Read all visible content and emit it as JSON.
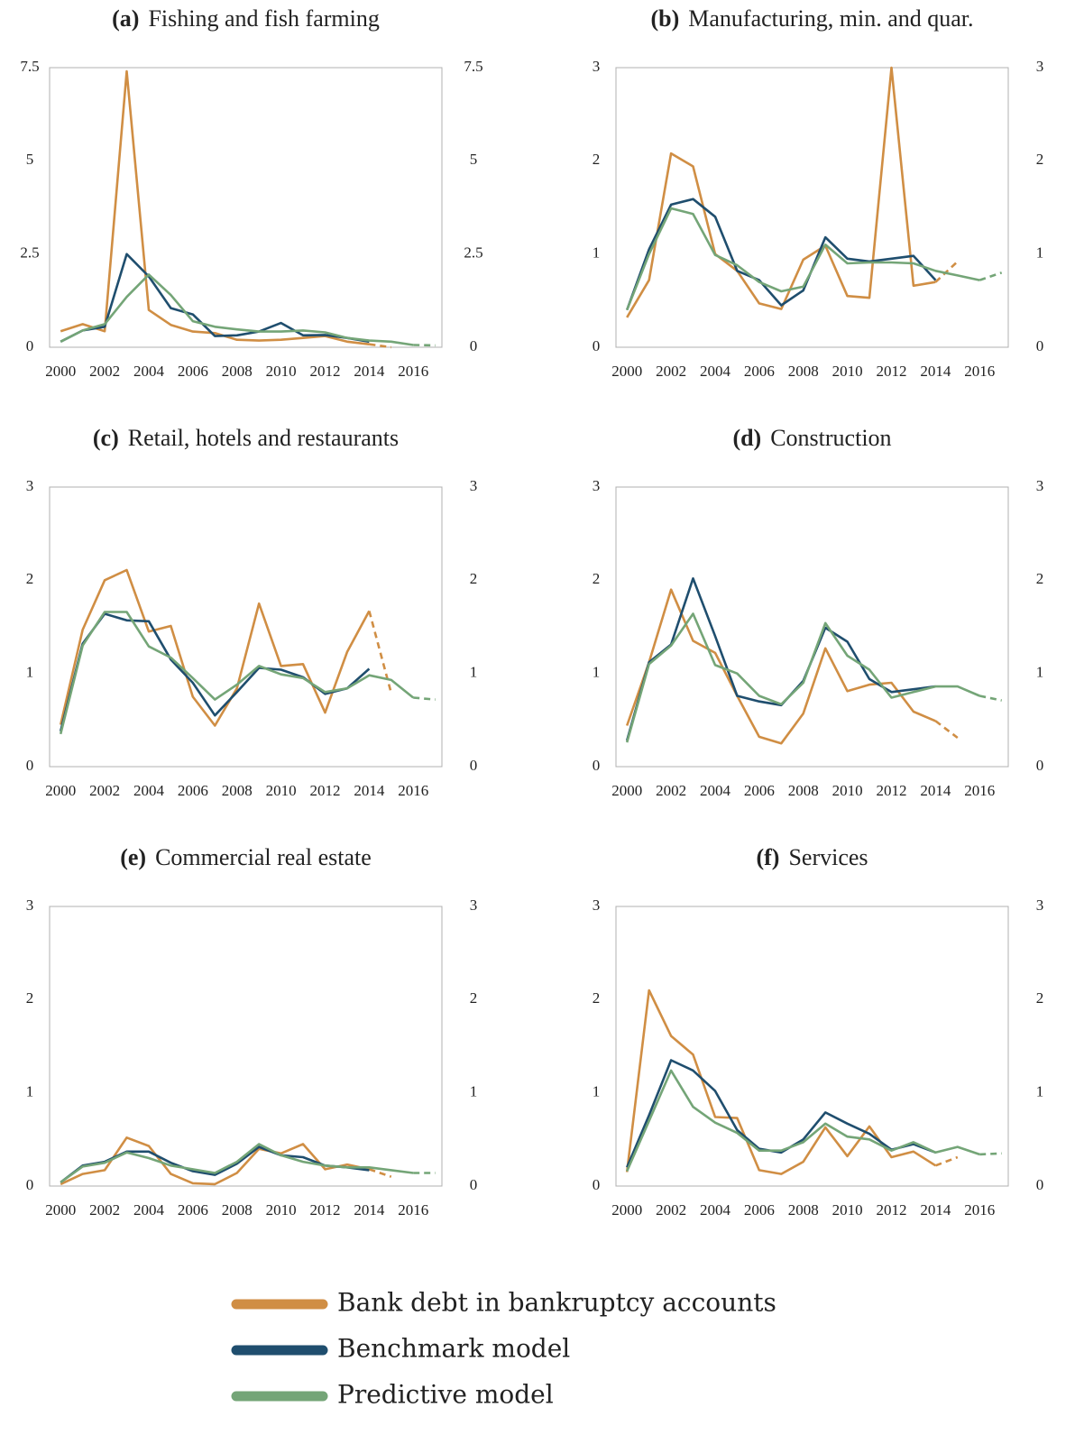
{
  "chart_data": [
    {
      "type": "line",
      "panel_label": "(a)",
      "title": "Fishing and fish farming",
      "x": [
        2000,
        2001,
        2002,
        2003,
        2004,
        2005,
        2006,
        2007,
        2008,
        2009,
        2010,
        2011,
        2012,
        2013,
        2014,
        2015,
        2016,
        2017
      ],
      "xlim": [
        1999.5,
        2017.3
      ],
      "xticks": [
        2000,
        2002,
        2004,
        2006,
        2008,
        2010,
        2012,
        2014,
        2016
      ],
      "ylim": [
        0,
        7.5
      ],
      "yticks": [
        0,
        2.5,
        5,
        7.5
      ],
      "y2lim": [
        0,
        7.5
      ],
      "y2ticks": [
        0,
        2.5,
        5,
        7.5
      ],
      "series": [
        {
          "color": "#D08E44",
          "dashed_last_segment": true,
          "values": [
            0.43,
            0.62,
            0.43,
            7.4,
            1.0,
            0.6,
            0.42,
            0.38,
            0.2,
            0.18,
            0.2,
            0.25,
            0.3,
            0.15,
            0.08,
            0.0,
            null,
            null
          ]
        },
        {
          "color": "#1F4E6E",
          "dashed_last_segment": false,
          "values": [
            0.15,
            0.45,
            0.55,
            2.5,
            1.9,
            1.05,
            0.88,
            0.3,
            0.32,
            0.42,
            0.65,
            0.32,
            0.33,
            0.25,
            0.15,
            null,
            null,
            null
          ]
        },
        {
          "color": "#74A577",
          "dashed_last_segment": true,
          "values": [
            0.15,
            0.45,
            0.62,
            1.35,
            1.95,
            1.4,
            0.7,
            0.55,
            0.48,
            0.42,
            0.42,
            0.45,
            0.4,
            0.25,
            0.18,
            0.15,
            0.06,
            0.05
          ]
        }
      ]
    },
    {
      "type": "line",
      "panel_label": "(b)",
      "title": "Manufacturing, min. and quar.",
      "x": [
        2000,
        2001,
        2002,
        2003,
        2004,
        2005,
        2006,
        2007,
        2008,
        2009,
        2010,
        2011,
        2012,
        2013,
        2014,
        2015,
        2016,
        2017
      ],
      "xlim": [
        1999.5,
        2017.3
      ],
      "xticks": [
        2000,
        2002,
        2004,
        2006,
        2008,
        2010,
        2012,
        2014,
        2016
      ],
      "ylim": [
        0,
        3
      ],
      "yticks": [
        0,
        1,
        2,
        3
      ],
      "y2lim": [
        0,
        3
      ],
      "y2ticks": [
        0,
        1,
        2,
        3
      ],
      "series": [
        {
          "color": "#D08E44",
          "dashed_last_segment": true,
          "values": [
            0.32,
            0.72,
            2.08,
            1.94,
            1.0,
            0.82,
            0.47,
            0.41,
            0.94,
            1.09,
            0.55,
            0.53,
            3.0,
            0.66,
            0.7,
            0.92,
            null,
            null
          ]
        },
        {
          "color": "#1F4E6E",
          "dashed_last_segment": false,
          "values": [
            0.4,
            1.05,
            1.53,
            1.59,
            1.4,
            0.82,
            0.72,
            0.45,
            0.61,
            1.18,
            0.95,
            0.92,
            0.95,
            0.98,
            0.72,
            null,
            null,
            null
          ]
        },
        {
          "color": "#74A577",
          "dashed_last_segment": true,
          "values": [
            0.4,
            1.0,
            1.49,
            1.43,
            0.99,
            0.88,
            0.7,
            0.6,
            0.65,
            1.1,
            0.9,
            0.91,
            0.91,
            0.9,
            0.82,
            0.77,
            0.72,
            0.8
          ]
        }
      ]
    },
    {
      "type": "line",
      "panel_label": "(c)",
      "title": "Retail, hotels and restaurants",
      "x": [
        2000,
        2001,
        2002,
        2003,
        2004,
        2005,
        2006,
        2007,
        2008,
        2009,
        2010,
        2011,
        2012,
        2013,
        2014,
        2015,
        2016,
        2017
      ],
      "xlim": [
        1999.5,
        2017.3
      ],
      "xticks": [
        2000,
        2002,
        2004,
        2006,
        2008,
        2010,
        2012,
        2014,
        2016
      ],
      "ylim": [
        0,
        3
      ],
      "yticks": [
        0,
        1,
        2,
        3
      ],
      "y2lim": [
        0,
        3
      ],
      "y2ticks": [
        0,
        1,
        2,
        3
      ],
      "series": [
        {
          "color": "#D08E44",
          "dashed_last_segment": true,
          "values": [
            0.45,
            1.47,
            2.0,
            2.11,
            1.45,
            1.51,
            0.75,
            0.44,
            0.84,
            1.75,
            1.08,
            1.1,
            0.58,
            1.23,
            1.67,
            0.79,
            null,
            null
          ]
        },
        {
          "color": "#1F4E6E",
          "dashed_last_segment": false,
          "values": [
            0.38,
            1.32,
            1.64,
            1.57,
            1.56,
            1.15,
            0.9,
            0.55,
            0.8,
            1.06,
            1.04,
            0.96,
            0.78,
            0.84,
            1.05,
            null,
            null,
            null
          ]
        },
        {
          "color": "#74A577",
          "dashed_last_segment": true,
          "values": [
            0.35,
            1.3,
            1.66,
            1.66,
            1.29,
            1.17,
            0.95,
            0.72,
            0.88,
            1.08,
            0.99,
            0.95,
            0.8,
            0.84,
            0.98,
            0.93,
            0.74,
            0.72
          ]
        }
      ]
    },
    {
      "type": "line",
      "panel_label": "(d)",
      "title": "Construction",
      "x": [
        2000,
        2001,
        2002,
        2003,
        2004,
        2005,
        2006,
        2007,
        2008,
        2009,
        2010,
        2011,
        2012,
        2013,
        2014,
        2015,
        2016,
        2017
      ],
      "xlim": [
        1999.5,
        2017.3
      ],
      "xticks": [
        2000,
        2002,
        2004,
        2006,
        2008,
        2010,
        2012,
        2014,
        2016
      ],
      "ylim": [
        0,
        3
      ],
      "yticks": [
        0,
        1,
        2,
        3
      ],
      "y2lim": [
        0,
        3
      ],
      "y2ticks": [
        0,
        1,
        2,
        3
      ],
      "series": [
        {
          "color": "#D08E44",
          "dashed_last_segment": true,
          "values": [
            0.44,
            1.12,
            1.9,
            1.35,
            1.22,
            0.76,
            0.32,
            0.25,
            0.57,
            1.27,
            0.81,
            0.88,
            0.9,
            0.59,
            0.49,
            0.31,
            null,
            null
          ]
        },
        {
          "color": "#1F4E6E",
          "dashed_last_segment": false,
          "values": [
            0.28,
            1.12,
            1.31,
            2.02,
            1.4,
            0.76,
            0.7,
            0.66,
            0.92,
            1.49,
            1.34,
            0.94,
            0.8,
            0.83,
            0.86,
            null,
            null,
            null
          ]
        },
        {
          "color": "#74A577",
          "dashed_last_segment": true,
          "values": [
            0.26,
            1.1,
            1.3,
            1.64,
            1.09,
            1.0,
            0.76,
            0.67,
            0.9,
            1.54,
            1.19,
            1.04,
            0.74,
            0.8,
            0.86,
            0.86,
            0.76,
            0.71
          ]
        }
      ]
    },
    {
      "type": "line",
      "panel_label": "(e)",
      "title": "Commercial real estate",
      "x": [
        2000,
        2001,
        2002,
        2003,
        2004,
        2005,
        2006,
        2007,
        2008,
        2009,
        2010,
        2011,
        2012,
        2013,
        2014,
        2015,
        2016,
        2017
      ],
      "xlim": [
        1999.5,
        2017.3
      ],
      "xticks": [
        2000,
        2002,
        2004,
        2006,
        2008,
        2010,
        2012,
        2014,
        2016
      ],
      "ylim": [
        0,
        3
      ],
      "yticks": [
        0,
        1,
        2,
        3
      ],
      "y2lim": [
        0,
        3
      ],
      "y2ticks": [
        0,
        1,
        2,
        3
      ],
      "series": [
        {
          "color": "#D08E44",
          "dashed_last_segment": true,
          "values": [
            0.02,
            0.13,
            0.17,
            0.52,
            0.43,
            0.13,
            0.03,
            0.02,
            0.14,
            0.4,
            0.35,
            0.45,
            0.18,
            0.23,
            0.18,
            0.1,
            null,
            null
          ]
        },
        {
          "color": "#1F4E6E",
          "dashed_last_segment": false,
          "values": [
            0.04,
            0.22,
            0.26,
            0.37,
            0.37,
            0.25,
            0.16,
            0.12,
            0.24,
            0.42,
            0.33,
            0.31,
            0.22,
            0.2,
            0.17,
            null,
            null,
            null
          ]
        },
        {
          "color": "#74A577",
          "dashed_last_segment": true,
          "values": [
            0.04,
            0.21,
            0.25,
            0.36,
            0.3,
            0.22,
            0.18,
            0.14,
            0.26,
            0.45,
            0.33,
            0.26,
            0.22,
            0.2,
            0.2,
            0.17,
            0.14,
            0.14
          ]
        }
      ]
    },
    {
      "type": "line",
      "panel_label": "(f)",
      "title": "Services",
      "x": [
        2000,
        2001,
        2002,
        2003,
        2004,
        2005,
        2006,
        2007,
        2008,
        2009,
        2010,
        2011,
        2012,
        2013,
        2014,
        2015,
        2016,
        2017
      ],
      "xlim": [
        1999.5,
        2017.3
      ],
      "xticks": [
        2000,
        2002,
        2004,
        2006,
        2008,
        2010,
        2012,
        2014,
        2016
      ],
      "ylim": [
        0,
        3
      ],
      "yticks": [
        0,
        1,
        2,
        3
      ],
      "y2lim": [
        0,
        3
      ],
      "y2ticks": [
        0,
        1,
        2,
        3
      ],
      "series": [
        {
          "color": "#D08E44",
          "dashed_last_segment": true,
          "values": [
            0.15,
            2.1,
            1.61,
            1.41,
            0.74,
            0.73,
            0.17,
            0.13,
            0.26,
            0.63,
            0.32,
            0.64,
            0.31,
            0.37,
            0.22,
            0.31,
            null,
            null
          ]
        },
        {
          "color": "#1F4E6E",
          "dashed_last_segment": false,
          "values": [
            0.2,
            0.76,
            1.35,
            1.24,
            1.02,
            0.6,
            0.4,
            0.36,
            0.5,
            0.79,
            0.67,
            0.56,
            0.39,
            0.45,
            0.36,
            null,
            null,
            null
          ]
        },
        {
          "color": "#74A577",
          "dashed_last_segment": true,
          "values": [
            0.16,
            0.7,
            1.24,
            0.85,
            0.68,
            0.57,
            0.38,
            0.38,
            0.47,
            0.67,
            0.53,
            0.5,
            0.38,
            0.47,
            0.36,
            0.42,
            0.34,
            0.35
          ]
        }
      ]
    }
  ],
  "legend": [
    {
      "name": "Bank debt in bankruptcy accounts",
      "color": "#D08E44"
    },
    {
      "name": "Benchmark model",
      "color": "#1F4E6E"
    },
    {
      "name": "Predictive model",
      "color": "#74A577"
    }
  ]
}
